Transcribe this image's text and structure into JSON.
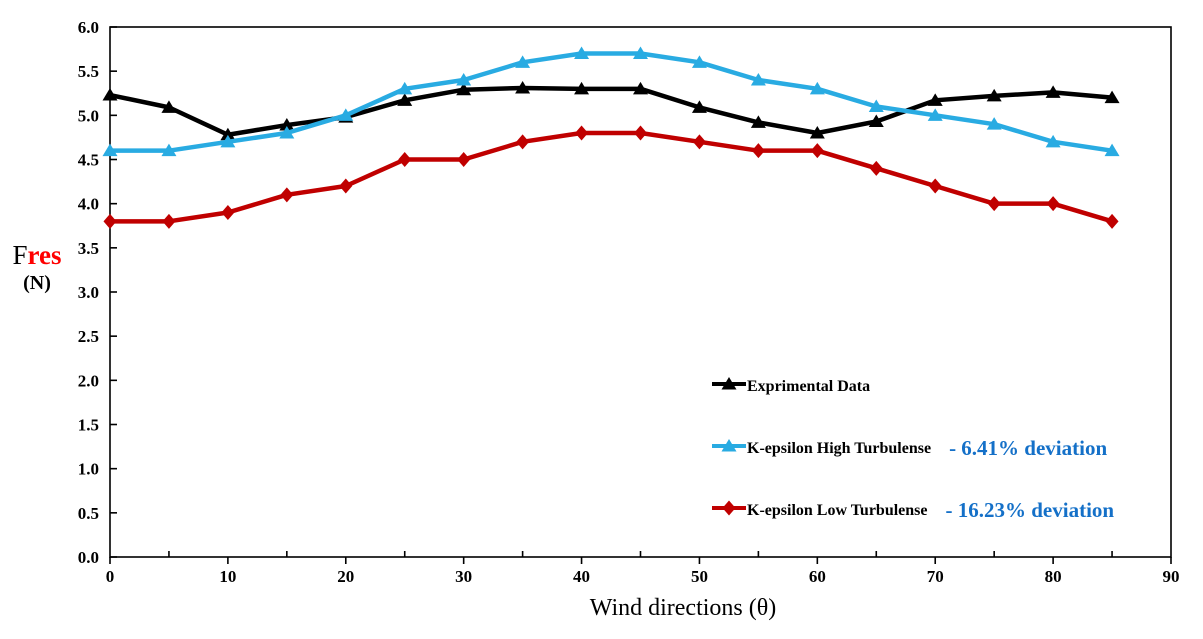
{
  "figure": {
    "y_axis": {
      "prefix": "F",
      "sub": "res",
      "unit": "(N)"
    },
    "x_axis_title": "Wind directions (θ)"
  },
  "colors": {
    "axis": "#000000",
    "deviation_text": "#1470C8",
    "y_label_sub": "#FF0000",
    "background": "#FFFFFF"
  },
  "legend": {
    "entries": [
      {
        "label": "Exprimental Data",
        "deviation": ""
      },
      {
        "label": "K-epsilon High Turbulense",
        "deviation": "- 6.41% deviation"
      },
      {
        "label": "K-epsilon Low Turbulense",
        "deviation": "- 16.23% deviation"
      }
    ]
  },
  "chart_data": {
    "type": "line",
    "title": "",
    "xlabel": "Wind directions (θ)",
    "ylabel": "Fres (N)",
    "xlim": [
      0,
      90
    ],
    "ylim": [
      0,
      6
    ],
    "x_major_tick": 10,
    "x_minor_tick": 5,
    "y_tick": 0.5,
    "grid": false,
    "legend_position": "inside-right-middle",
    "x": [
      0,
      5,
      10,
      15,
      20,
      25,
      30,
      35,
      40,
      45,
      50,
      55,
      60,
      65,
      70,
      75,
      80,
      85
    ],
    "series": [
      {
        "name": "Exprimental Data",
        "color": "#000000",
        "marker": "triangle",
        "values": [
          5.23,
          5.09,
          4.78,
          4.89,
          4.98,
          5.17,
          5.29,
          5.31,
          5.3,
          5.3,
          5.09,
          4.92,
          4.8,
          4.93,
          5.17,
          5.22,
          5.26,
          5.2
        ]
      },
      {
        "name": "K-epsilon High Turbulense",
        "color": "#29ABE2",
        "marker": "triangle",
        "values": [
          4.6,
          4.6,
          4.7,
          4.8,
          5.0,
          5.3,
          5.4,
          5.6,
          5.7,
          5.7,
          5.6,
          5.4,
          5.3,
          5.1,
          5.0,
          4.9,
          4.7,
          4.6
        ]
      },
      {
        "name": "K-epsilon Low Turbulense",
        "color": "#C00000",
        "marker": "diamond",
        "values": [
          3.8,
          3.8,
          3.9,
          4.1,
          4.2,
          4.5,
          4.5,
          4.7,
          4.8,
          4.8,
          4.7,
          4.6,
          4.6,
          4.4,
          4.2,
          4.0,
          4.0,
          3.8
        ]
      }
    ]
  }
}
